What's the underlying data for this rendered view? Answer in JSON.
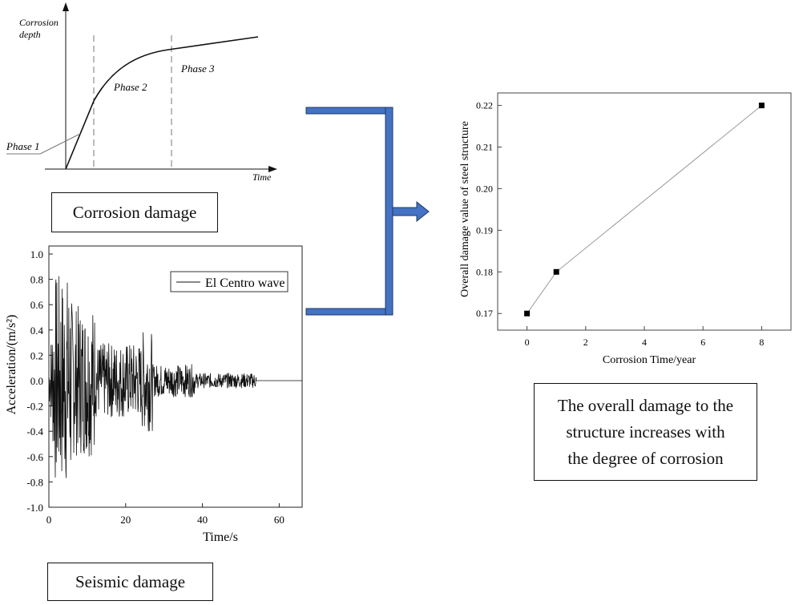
{
  "corrosion_panel": {
    "y_label_line1": "Corrosion",
    "y_label_line2": "depth",
    "x_label": "Time",
    "phase1": "Phase 1",
    "phase2": "Phase 2",
    "phase3": "Phase 3",
    "box_label": "Corrosion damage"
  },
  "seismic_panel": {
    "legend": "El Centro wave",
    "ylabel": "Acceleration/(m/s²)",
    "xlabel": "Time/s",
    "y_ticks": [
      "1.0",
      "0.8",
      "0.6",
      "0.4",
      "0.2",
      "0.0",
      "-0.2",
      "-0.4",
      "-0.6",
      "-0.8",
      "-1.0"
    ],
    "x_ticks": [
      "0",
      "20",
      "40",
      "60"
    ],
    "box_label": "Seismic damage"
  },
  "result_panel": {
    "box_lines": [
      "The overall damage to the",
      "structure increases with",
      "the degree of corrosion"
    ]
  },
  "colors": {
    "connector_fill": "#4472c4",
    "connector_stroke": "#1f3864",
    "line": "#111111",
    "chart_line": "#999999"
  },
  "chart_data": {
    "type": "line",
    "xlabel": "Corrosion Time/year",
    "ylabel": "Overall damage value of steel structure",
    "x": [
      0,
      1,
      8
    ],
    "series": [
      {
        "values": [
          0.17,
          0.18,
          0.22
        ]
      }
    ],
    "xlim": [
      -1,
      9
    ],
    "ylim": [
      0.166,
      0.223
    ],
    "x_ticks": [
      "0",
      "2",
      "4",
      "6",
      "8"
    ],
    "y_ticks": [
      "0.17",
      "0.18",
      "0.19",
      "0.20",
      "0.21",
      "0.22"
    ],
    "grid": false
  }
}
